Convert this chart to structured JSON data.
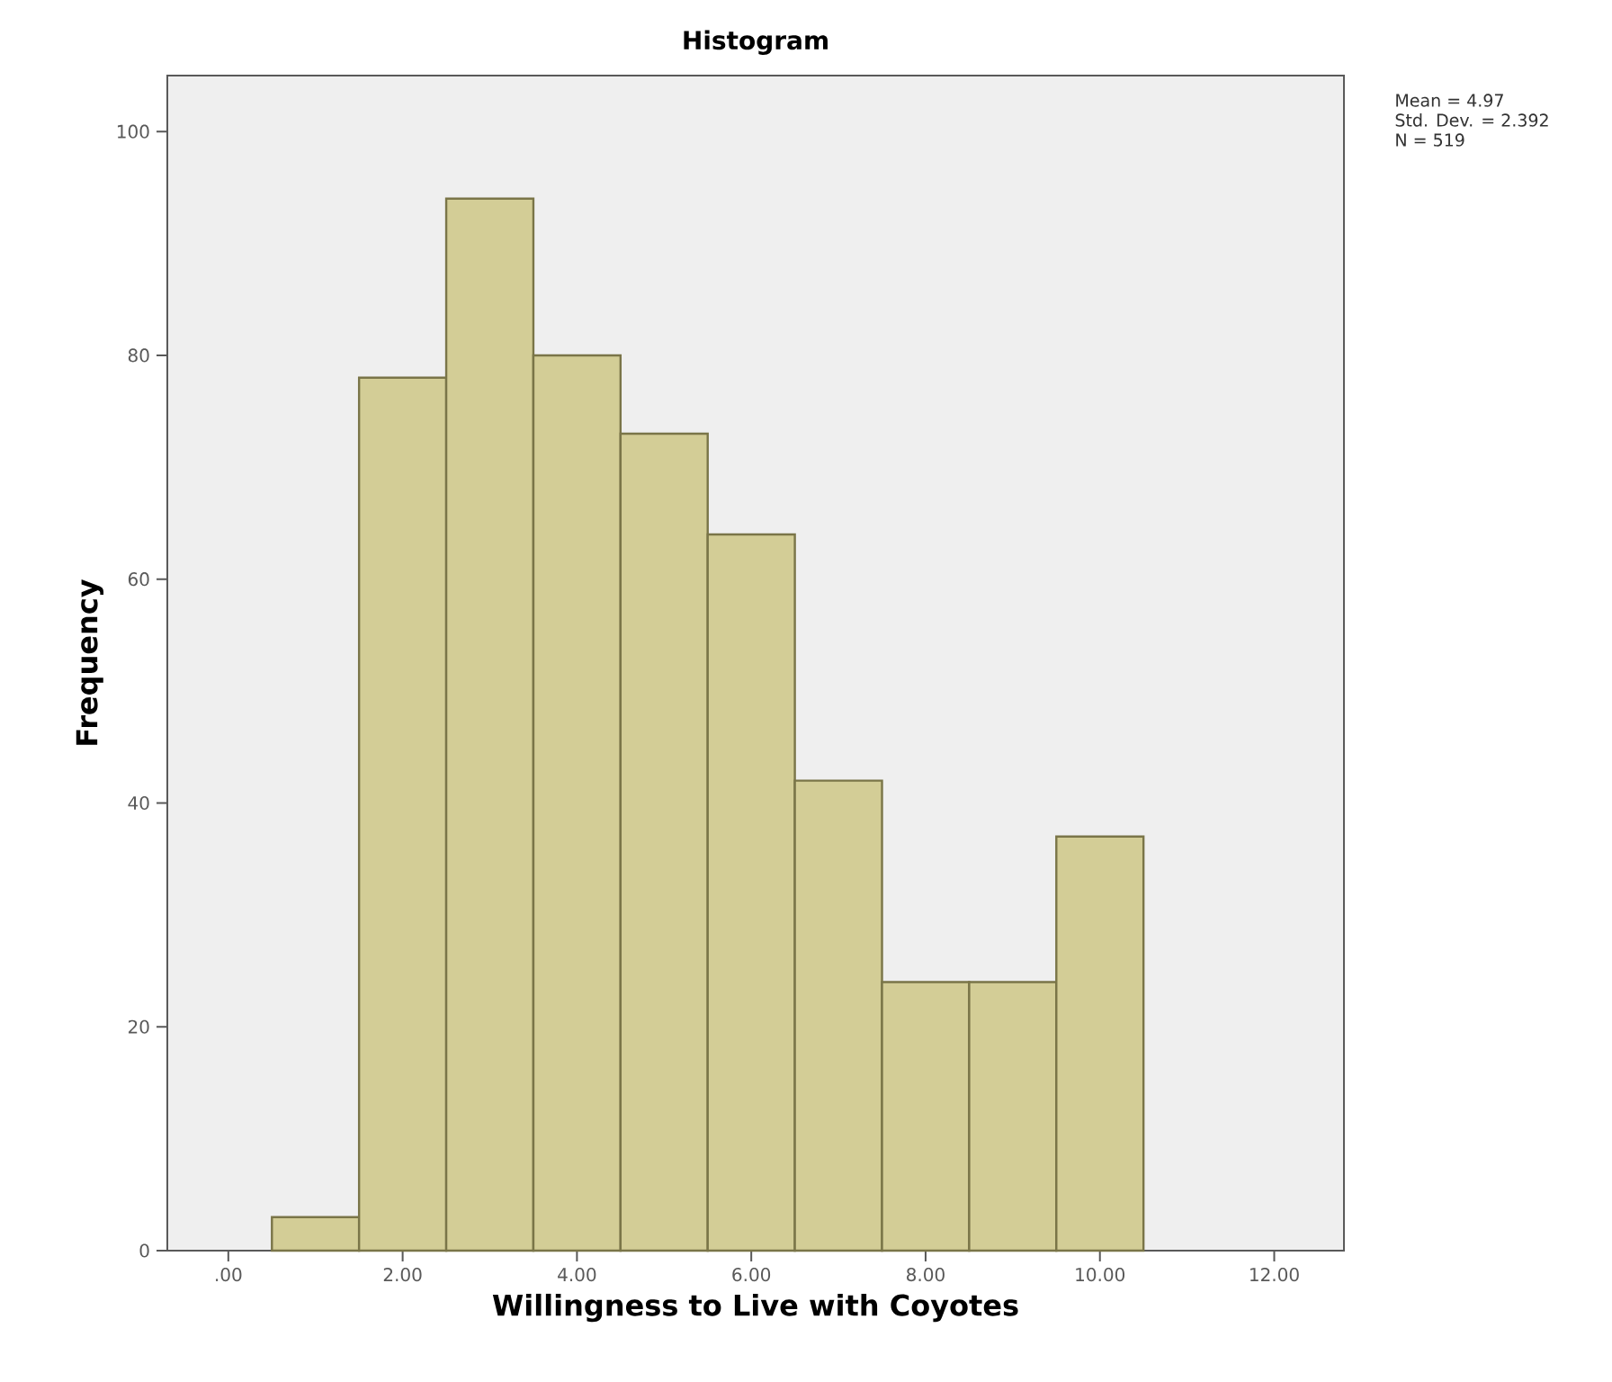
{
  "chart_data": {
    "type": "histogram",
    "title": "Histogram",
    "xlabel": "Willingness to Live with Coyotes",
    "ylabel": "Frequency",
    "bins": [
      0.5,
      1.5,
      2.5,
      3.5,
      4.5,
      5.5,
      6.5,
      7.5,
      8.5,
      9.5,
      10.5
    ],
    "values": [
      3,
      78,
      94,
      80,
      73,
      64,
      42,
      24,
      24,
      37
    ],
    "color": "#d3cd96",
    "xlim": [
      -0.7,
      12.8
    ],
    "ylim": [
      0,
      105
    ],
    "xticks": [
      {
        "value": 0,
        "label": ".00"
      },
      {
        "value": 2,
        "label": "2.00"
      },
      {
        "value": 4,
        "label": "4.00"
      },
      {
        "value": 6,
        "label": "6.00"
      },
      {
        "value": 8,
        "label": "8.00"
      },
      {
        "value": 10,
        "label": "10.00"
      },
      {
        "value": 12,
        "label": "12.00"
      }
    ],
    "yticks": [
      0,
      20,
      40,
      60,
      80,
      100
    ],
    "annotations": [
      "Mean = 4.97",
      "Std. Dev. = 2.392",
      "N = 519"
    ]
  }
}
